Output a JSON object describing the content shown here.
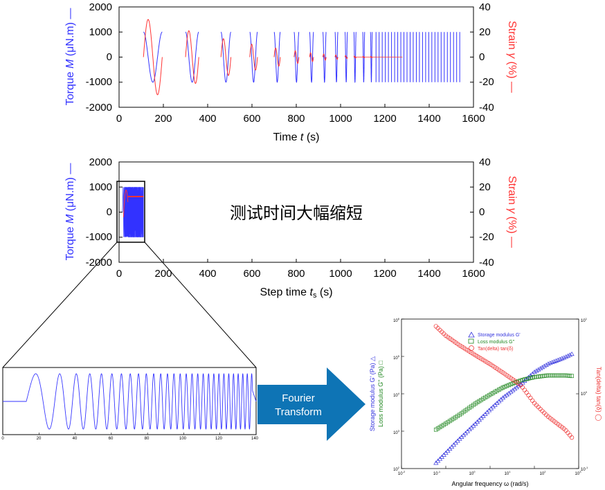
{
  "colors": {
    "torque": "#3333ff",
    "strain": "#ff3333",
    "storage": "#3333dd",
    "loss": "#228822",
    "tan": "#ee3333",
    "arrow": "#0e74b5",
    "axis": "#000000"
  },
  "annotation": "测试时间大幅缩短",
  "arrow_label": {
    "line1": "Fourier",
    "line2": "Transform"
  },
  "chart_data": [
    {
      "type": "line",
      "xlabel": "Time",
      "xlabel_symbol": "t",
      "xlabel_unit": "(s)",
      "ylabel_left_pre": "Torque ",
      "ylabel_left_sym": "M",
      "ylabel_left_post": " (μN.m) —",
      "ylabel_right_pre": "Strain ",
      "ylabel_right_sym": "γ",
      "ylabel_right_post": " (%) —",
      "xlim": [
        0,
        1600
      ],
      "ylim_left": [
        -2000,
        2000
      ],
      "ylim_right": [
        -40,
        40
      ],
      "xticks": [
        "0",
        "200",
        "400",
        "600",
        "800",
        "1000",
        "1200",
        "1400",
        "1600"
      ],
      "yticks_left": [
        "2000",
        "1000",
        "0",
        "-1000",
        "-2000"
      ],
      "yticks_right": [
        "40",
        "20",
        "0",
        "-20",
        "-40"
      ],
      "series": [
        {
          "axis": "left",
          "description_type": "discrete multisine torque bursts",
          "bursts_start_s": [
            110,
            300,
            460,
            590,
            700,
            790,
            860,
            920,
            975,
            1020,
            1060,
            1100,
            1135
          ],
          "bursts_duration_s": [
            85,
            60,
            45,
            35,
            28,
            22,
            18,
            15,
            13,
            11,
            10,
            9,
            8
          ],
          "amplitude": 1000,
          "dense_until_s": 1550
        },
        {
          "axis": "right",
          "strain_peak_first_pct": 30,
          "strain_decay": "amplitude decreases with burst index"
        }
      ]
    },
    {
      "type": "line",
      "xlabel": "Step time",
      "xlabel_symbol": "t",
      "xlabel_sub": "s",
      "xlabel_unit": "(s)",
      "ylabel_left_pre": "Torque ",
      "ylabel_left_sym": "M",
      "ylabel_left_post": " (μN.m) —",
      "ylabel_right_pre": "Strain ",
      "ylabel_right_sym": "γ",
      "ylabel_right_post": " (%) —",
      "xlim": [
        0,
        1600
      ],
      "ylim_left": [
        -2000,
        2000
      ],
      "ylim_right": [
        -40,
        40
      ],
      "xticks": [
        "0",
        "200",
        "400",
        "600",
        "800",
        "1000",
        "1200",
        "1400",
        "1600"
      ],
      "yticks_left": [
        "2000",
        "1000",
        "0",
        "-1000",
        "-2000"
      ],
      "yticks_right": [
        "40",
        "20",
        "0",
        "-20",
        "-40"
      ],
      "signal_range_s": [
        15,
        110
      ],
      "amplitude": 1000
    },
    {
      "type": "line",
      "description_type": "chirp signal zoom",
      "xlim": [
        0,
        140
      ],
      "xticks": [
        "0",
        "20",
        "40",
        "60",
        "80",
        "100",
        "120",
        "140"
      ],
      "chirp_start_s": 13,
      "chirp_end_s": 138
    },
    {
      "type": "scatter",
      "xlabel": "Angular frequency  ω  (rad/s)",
      "ylabel_left_a": "Storage modulus  G' (Pa) △",
      "ylabel_left_b": "Loss modulus  G'' (Pa) □",
      "ylabel_right": "Tan(delta)  tan(δ)  ◯",
      "xscale": "log",
      "x_range": [
        0.01,
        100
      ],
      "y_left_range": [
        100,
        1000000
      ],
      "y_right_range": [
        0.1,
        10
      ],
      "xticks": [
        {
          "b": "10",
          "e": "-2"
        },
        {
          "b": "10",
          "e": "-1"
        },
        {
          "b": "10",
          "e": "0"
        },
        {
          "b": "10",
          "e": "1"
        },
        {
          "b": "10",
          "e": "2"
        },
        {
          "b": "10",
          "e": "3"
        }
      ],
      "yticks_left": [
        {
          "b": "10",
          "e": "6"
        },
        {
          "b": "10",
          "e": "5"
        },
        {
          "b": "10",
          "e": "4"
        },
        {
          "b": "10",
          "e": "3"
        },
        {
          "b": "10",
          "e": "2"
        }
      ],
      "yticks_right": [
        {
          "b": "10",
          "e": "1"
        },
        {
          "b": "10",
          "e": "0"
        },
        {
          "b": "10",
          "e": "-1"
        }
      ],
      "legend": [
        {
          "name": "Storage modulus  G'",
          "marker": "triangle"
        },
        {
          "name": "Loss modulus  G''",
          "marker": "square"
        },
        {
          "name": "Tan(delta)  tan(δ)",
          "marker": "circle"
        }
      ],
      "legend_position": "top-center",
      "series": [
        {
          "name": "Storage modulus  G'",
          "x": [
            0.06,
            0.1,
            0.2,
            0.5,
            1,
            2,
            5,
            10,
            20,
            50,
            70
          ],
          "values": [
            140,
            260,
            600,
            1700,
            3800,
            8000,
            18000,
            38000,
            62000,
            95000,
            115000
          ]
        },
        {
          "name": "Loss modulus  G''",
          "x": [
            0.06,
            0.1,
            0.2,
            0.5,
            1,
            2,
            5,
            10,
            20,
            50,
            70
          ],
          "values": [
            1100,
            1600,
            2700,
            5800,
            9500,
            15000,
            23000,
            28000,
            31000,
            31000,
            30000
          ]
        },
        {
          "name": "Tan(delta)  tan(δ)",
          "x": [
            0.06,
            0.1,
            0.2,
            0.5,
            1,
            2,
            5,
            10,
            20,
            50,
            70
          ],
          "values": [
            8,
            6,
            4.5,
            3.2,
            2.5,
            1.9,
            1.3,
            0.75,
            0.5,
            0.33,
            0.26
          ]
        }
      ]
    }
  ]
}
